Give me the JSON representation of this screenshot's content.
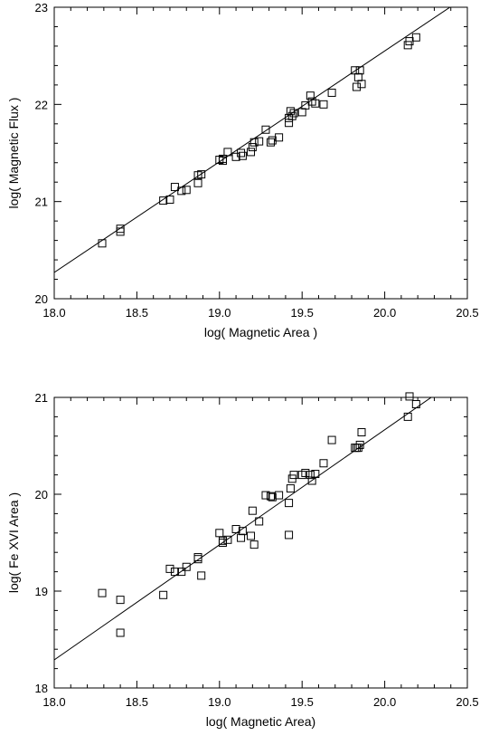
{
  "chart_data": [
    {
      "type": "scatter",
      "xlabel": "log( Magnetic Area )",
      "ylabel": "log( Magnetic Flux )",
      "xlim": [
        18.0,
        20.5
      ],
      "ylim": [
        20,
        23
      ],
      "xticks": [
        "18.0",
        "18.5",
        "19.0",
        "19.5",
        "20.0",
        "20.5"
      ],
      "yticks": [
        "20",
        "21",
        "22",
        "23"
      ],
      "fit_line": {
        "x": [
          18.0,
          20.5
        ],
        "y": [
          20.27,
          23.12
        ]
      },
      "marker": "open-square",
      "x": [
        18.29,
        18.4,
        18.4,
        18.66,
        18.7,
        18.73,
        18.77,
        18.8,
        18.87,
        18.87,
        18.89,
        19.0,
        19.02,
        19.02,
        19.05,
        19.1,
        19.13,
        19.14,
        19.19,
        19.2,
        19.21,
        19.24,
        19.28,
        19.31,
        19.32,
        19.36,
        19.42,
        19.42,
        19.43,
        19.44,
        19.45,
        19.5,
        19.52,
        19.55,
        19.56,
        19.58,
        19.63,
        19.68,
        19.82,
        19.83,
        19.84,
        19.85,
        19.86,
        20.14,
        20.15,
        20.19
      ],
      "y": [
        20.57,
        20.72,
        20.69,
        21.01,
        21.02,
        21.15,
        21.11,
        21.12,
        21.19,
        21.27,
        21.28,
        21.43,
        21.44,
        21.42,
        21.51,
        21.46,
        21.5,
        21.47,
        21.51,
        21.56,
        21.61,
        21.62,
        21.74,
        21.61,
        21.63,
        21.66,
        21.86,
        21.81,
        21.93,
        21.88,
        21.91,
        21.92,
        21.99,
        22.09,
        22.03,
        22.01,
        22.0,
        22.12,
        22.35,
        22.18,
        22.28,
        22.35,
        22.21,
        22.61,
        22.65,
        22.69
      ]
    },
    {
      "type": "scatter",
      "xlabel": "log( Magnetic Area)",
      "ylabel": "log( Fe XVI Area )",
      "xlim": [
        18.0,
        20.5
      ],
      "ylim": [
        18,
        21
      ],
      "xticks": [
        "18.0",
        "18.5",
        "19.0",
        "19.5",
        "20.0",
        "20.5"
      ],
      "yticks": [
        "18",
        "19",
        "20",
        "21"
      ],
      "fit_line": {
        "x": [
          18.0,
          20.5
        ],
        "y": [
          18.29,
          21.26
        ]
      },
      "marker": "open-square",
      "x": [
        18.29,
        18.4,
        18.4,
        18.66,
        18.7,
        18.73,
        18.77,
        18.8,
        18.87,
        18.87,
        18.89,
        19.0,
        19.02,
        19.02,
        19.05,
        19.1,
        19.13,
        19.14,
        19.19,
        19.2,
        19.21,
        19.24,
        19.28,
        19.31,
        19.32,
        19.36,
        19.42,
        19.42,
        19.43,
        19.44,
        19.45,
        19.5,
        19.52,
        19.55,
        19.56,
        19.58,
        19.63,
        19.68,
        19.82,
        19.83,
        19.84,
        19.85,
        19.86,
        20.14,
        20.15,
        20.19
      ],
      "y": [
        18.98,
        18.91,
        18.57,
        18.96,
        19.23,
        19.2,
        19.2,
        19.25,
        19.35,
        19.33,
        19.16,
        19.6,
        19.5,
        19.52,
        19.53,
        19.64,
        19.55,
        19.62,
        19.57,
        19.83,
        19.48,
        19.72,
        19.99,
        19.98,
        19.97,
        19.99,
        19.58,
        19.91,
        20.06,
        20.16,
        20.2,
        20.2,
        20.22,
        20.2,
        20.14,
        20.21,
        20.32,
        20.56,
        20.48,
        20.48,
        20.48,
        20.51,
        20.64,
        20.8,
        21.01,
        20.93
      ]
    }
  ]
}
